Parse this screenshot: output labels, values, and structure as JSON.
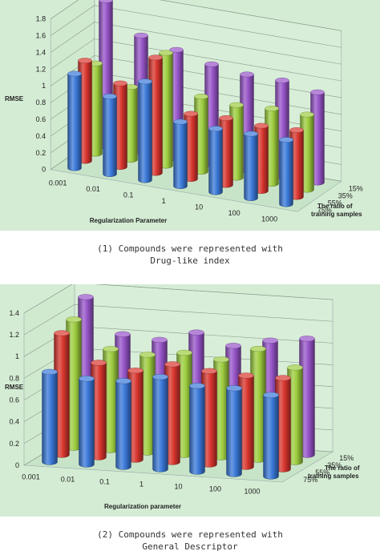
{
  "charts": [
    {
      "chart_data": {
        "type": "bar",
        "subtype": "3d-clustered-cylinder",
        "categories": [
          "0.001",
          "0.01",
          "0.1",
          "1",
          "10",
          "100",
          "1000"
        ],
        "ylabel": "RMSE",
        "xlabel": "Regularization Parameter",
        "zlabel_line1": "The ratio of",
        "zlabel_line2": "training samples",
        "ylim": [
          0,
          1.8
        ],
        "yticks": [
          "0",
          "0.2",
          "0.4",
          "0.6",
          "0.8",
          "1",
          "1.2",
          "1.4",
          "1.6",
          "1.8"
        ],
        "series": [
          {
            "name": "75%",
            "color": "#3a78d8",
            "values": [
              1.13,
              0.93,
              1.18,
              0.77,
              0.76,
              0.77,
              0.77
            ]
          },
          {
            "name": "55%",
            "color": "#d8352e",
            "values": [
              1.2,
              1.0,
              1.38,
              0.78,
              0.8,
              0.78,
              0.8
            ]
          },
          {
            "name": "35%",
            "color": "#9ccc3e",
            "values": [
              1.08,
              0.87,
              1.35,
              0.9,
              0.87,
              0.9,
              0.9
            ]
          },
          {
            "name": "15%",
            "color": "#9654c8",
            "values": [
              1.75,
              1.4,
              1.3,
              1.2,
              1.15,
              1.15,
              1.08
            ]
          }
        ]
      },
      "caption_line1": "(1) Compounds were represented with",
      "caption_line2": "Drug-like index"
    },
    {
      "chart_data": {
        "type": "bar",
        "subtype": "3d-clustered-cylinder",
        "categories": [
          "0.001",
          "0.01",
          "0.1",
          "1",
          "10",
          "100",
          "1000"
        ],
        "ylabel": "RMSE",
        "xlabel": "Regularization parameter",
        "zlabel_line1": "The ratio of",
        "zlabel_line2": "training samples",
        "ylim": [
          0,
          1.4
        ],
        "yticks": [
          "0",
          "0.2",
          "0.4",
          "0.6",
          "0.8",
          "1",
          "1.2",
          "1.4"
        ],
        "series": [
          {
            "name": "75%",
            "color": "#3a78d8",
            "values": [
              0.83,
              0.79,
              0.79,
              0.85,
              0.79,
              0.79,
              0.75
            ]
          },
          {
            "name": "55%",
            "color": "#d8352e",
            "values": [
              1.12,
              0.87,
              0.82,
              0.9,
              0.86,
              0.84,
              0.84
            ]
          },
          {
            "name": "35%",
            "color": "#9ccc3e",
            "values": [
              1.18,
              0.93,
              0.9,
              0.94,
              0.9,
              1.02,
              0.87
            ]
          },
          {
            "name": "15%",
            "color": "#9654c8",
            "values": [
              1.32,
              1.0,
              0.97,
              1.06,
              0.96,
              1.03,
              1.07
            ]
          }
        ]
      },
      "caption_line1": "(2) Compounds were represented with",
      "caption_line2": "General Descriptor"
    }
  ]
}
